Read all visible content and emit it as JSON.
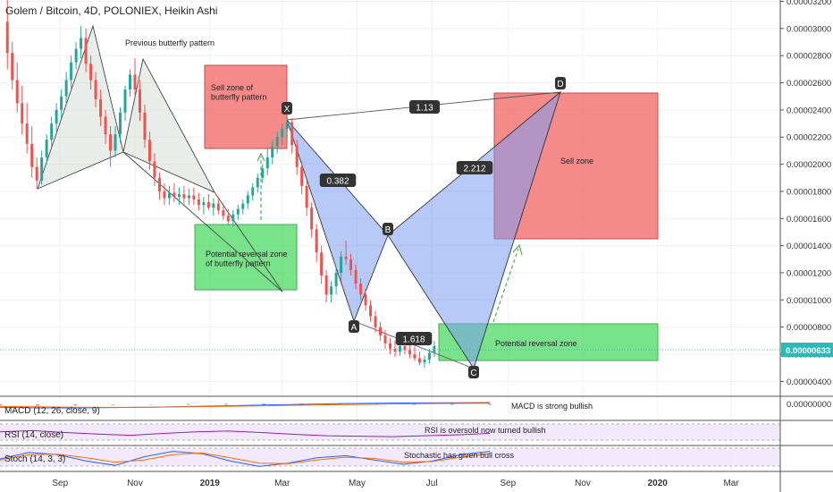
{
  "header": {
    "title": "Golem / Bitcoin, 4D, POLONIEX, Heikin Ashi"
  },
  "colors": {
    "bull": "#26a69a",
    "bear": "#ef5350",
    "sell_zone": "#f26d6d",
    "reversal_zone": "#4cd964",
    "xabcd_fill": "#7b9cf0",
    "butterfly_fill": "#cfd8cf",
    "price_line": "#2eb8b8",
    "macd_line": "#2962ff",
    "signal_line": "#ff6d00",
    "rsi_line": "#8e24aa",
    "stoch_k": "#2962ff",
    "stoch_d": "#ff6d00",
    "panel_fill": "#efe3f9"
  },
  "chart_data": {
    "type": "candlestick",
    "title": "Golem / Bitcoin, 4D, POLONIEX, Heikin Ashi",
    "xlabel": "",
    "ylabel": "",
    "x_ticks": [
      "Sep",
      "Nov",
      "2019",
      "Mar",
      "May",
      "Jul",
      "Sep",
      "Nov",
      "2020",
      "Mar"
    ],
    "y_ticks": [
      "0.00003200",
      "0.00003000",
      "0.00002800",
      "0.00002600",
      "0.00002400",
      "0.00002200",
      "0.00002000",
      "0.00001800",
      "0.00001600",
      "0.00001400",
      "0.00001200",
      "0.00001000",
      "0.00000800",
      "0.00000600",
      "0.00000400"
    ],
    "ylim": [
      3.1e-06,
      3.21e-05
    ],
    "last_price": "0.00000633",
    "grid": true,
    "candles": [
      {
        "x": "2018-07-20",
        "o": 3.05e-05,
        "h": 3.25e-05,
        "l": 2.7e-05,
        "c": 2.82e-05
      },
      {
        "x": "2018-07-24",
        "o": 2.82e-05,
        "h": 2.9e-05,
        "l": 2.55e-05,
        "c": 2.62e-05
      },
      {
        "x": "2018-07-28",
        "o": 2.62e-05,
        "h": 2.75e-05,
        "l": 2.38e-05,
        "c": 2.45e-05
      },
      {
        "x": "2018-08-01",
        "o": 2.45e-05,
        "h": 2.58e-05,
        "l": 2.22e-05,
        "c": 2.3e-05
      },
      {
        "x": "2018-08-05",
        "o": 2.3e-05,
        "h": 2.45e-05,
        "l": 2.08e-05,
        "c": 2.15e-05
      },
      {
        "x": "2018-08-09",
        "o": 2.15e-05,
        "h": 2.28e-05,
        "l": 1.9e-05,
        "c": 1.98e-05
      },
      {
        "x": "2018-08-13",
        "o": 1.98e-05,
        "h": 2.05e-05,
        "l": 1.82e-05,
        "c": 1.88e-05
      },
      {
        "x": "2018-08-17",
        "o": 1.88e-05,
        "h": 2.1e-05,
        "l": 1.85e-05,
        "c": 2.05e-05
      },
      {
        "x": "2018-08-21",
        "o": 2.05e-05,
        "h": 2.22e-05,
        "l": 2e-05,
        "c": 2.18e-05
      },
      {
        "x": "2018-08-25",
        "o": 2.18e-05,
        "h": 2.35e-05,
        "l": 2.12e-05,
        "c": 2.3e-05
      },
      {
        "x": "2018-08-29",
        "o": 2.3e-05,
        "h": 2.45e-05,
        "l": 2.24e-05,
        "c": 2.4e-05
      },
      {
        "x": "2018-09-02",
        "o": 2.4e-05,
        "h": 2.55e-05,
        "l": 2.34e-05,
        "c": 2.5e-05
      },
      {
        "x": "2018-09-06",
        "o": 2.5e-05,
        "h": 2.68e-05,
        "l": 2.44e-05,
        "c": 2.62e-05
      },
      {
        "x": "2018-09-10",
        "o": 2.62e-05,
        "h": 2.8e-05,
        "l": 2.56e-05,
        "c": 2.75e-05
      },
      {
        "x": "2018-09-14",
        "o": 2.75e-05,
        "h": 2.9e-05,
        "l": 2.7e-05,
        "c": 2.85e-05
      },
      {
        "x": "2018-09-18",
        "o": 2.85e-05,
        "h": 3.02e-05,
        "l": 2.78e-05,
        "c": 2.93e-05
      },
      {
        "x": "2018-09-22",
        "o": 2.93e-05,
        "h": 3e-05,
        "l": 2.68e-05,
        "c": 2.74e-05
      },
      {
        "x": "2018-09-26",
        "o": 2.74e-05,
        "h": 2.8e-05,
        "l": 2.55e-05,
        "c": 2.62e-05
      },
      {
        "x": "2018-09-30",
        "o": 2.62e-05,
        "h": 2.68e-05,
        "l": 2.42e-05,
        "c": 2.48e-05
      },
      {
        "x": "2018-10-04",
        "o": 2.48e-05,
        "h": 2.55e-05,
        "l": 2.28e-05,
        "c": 2.35e-05
      },
      {
        "x": "2018-10-08",
        "o": 2.35e-05,
        "h": 2.4e-05,
        "l": 2.15e-05,
        "c": 2.22e-05
      },
      {
        "x": "2018-10-12",
        "o": 2.22e-05,
        "h": 2.28e-05,
        "l": 1.98e-05,
        "c": 2.1e-05
      },
      {
        "x": "2018-10-16",
        "o": 2.1e-05,
        "h": 2.28e-05,
        "l": 2.05e-05,
        "c": 2.22e-05
      },
      {
        "x": "2018-10-20",
        "o": 2.22e-05,
        "h": 2.42e-05,
        "l": 2.16e-05,
        "c": 2.38e-05
      },
      {
        "x": "2018-10-24",
        "o": 2.38e-05,
        "h": 2.58e-05,
        "l": 2.32e-05,
        "c": 2.55e-05
      },
      {
        "x": "2018-10-28",
        "o": 2.55e-05,
        "h": 2.7e-05,
        "l": 2.5e-05,
        "c": 2.66e-05
      },
      {
        "x": "2018-11-01",
        "o": 2.66e-05,
        "h": 2.78e-05,
        "l": 2.5e-05,
        "c": 2.55e-05
      },
      {
        "x": "2018-11-05",
        "o": 2.55e-05,
        "h": 2.62e-05,
        "l": 2.32e-05,
        "c": 2.38e-05
      },
      {
        "x": "2018-11-09",
        "o": 2.38e-05,
        "h": 2.44e-05,
        "l": 2.12e-05,
        "c": 2.18e-05
      },
      {
        "x": "2018-11-13",
        "o": 2.18e-05,
        "h": 2.24e-05,
        "l": 1.96e-05,
        "c": 2.02e-05
      },
      {
        "x": "2018-11-17",
        "o": 2.02e-05,
        "h": 2.08e-05,
        "l": 1.84e-05,
        "c": 1.9e-05
      },
      {
        "x": "2018-11-21",
        "o": 1.9e-05,
        "h": 1.94e-05,
        "l": 1.74e-05,
        "c": 1.8e-05
      },
      {
        "x": "2018-11-25",
        "o": 1.8e-05,
        "h": 1.86e-05,
        "l": 1.7e-05,
        "c": 1.75e-05
      },
      {
        "x": "2018-11-29",
        "o": 1.75e-05,
        "h": 1.84e-05,
        "l": 1.7e-05,
        "c": 1.79e-05
      },
      {
        "x": "2018-12-03",
        "o": 1.79e-05,
        "h": 1.86e-05,
        "l": 1.72e-05,
        "c": 1.76e-05
      },
      {
        "x": "2018-12-07",
        "o": 1.76e-05,
        "h": 1.83e-05,
        "l": 1.7e-05,
        "c": 1.78e-05
      },
      {
        "x": "2018-12-11",
        "o": 1.78e-05,
        "h": 1.84e-05,
        "l": 1.71e-05,
        "c": 1.75e-05
      },
      {
        "x": "2018-12-15",
        "o": 1.75e-05,
        "h": 1.82e-05,
        "l": 1.7e-05,
        "c": 1.77e-05
      },
      {
        "x": "2018-12-19",
        "o": 1.77e-05,
        "h": 1.83e-05,
        "l": 1.7e-05,
        "c": 1.74e-05
      },
      {
        "x": "2018-12-23",
        "o": 1.74e-05,
        "h": 1.79e-05,
        "l": 1.66e-05,
        "c": 1.7e-05
      },
      {
        "x": "2018-12-27",
        "o": 1.7e-05,
        "h": 1.76e-05,
        "l": 1.63e-05,
        "c": 1.72e-05
      },
      {
        "x": "2018-12-31",
        "o": 1.72e-05,
        "h": 1.78e-05,
        "l": 1.66e-05,
        "c": 1.68e-05
      },
      {
        "x": "2019-01-04",
        "o": 1.68e-05,
        "h": 1.75e-05,
        "l": 1.62e-05,
        "c": 1.71e-05
      },
      {
        "x": "2019-01-08",
        "o": 1.71e-05,
        "h": 1.76e-05,
        "l": 1.63e-05,
        "c": 1.66e-05
      },
      {
        "x": "2019-01-12",
        "o": 1.66e-05,
        "h": 1.71e-05,
        "l": 1.59e-05,
        "c": 1.62e-05
      },
      {
        "x": "2019-01-16",
        "o": 1.62e-05,
        "h": 1.67e-05,
        "l": 1.55e-05,
        "c": 1.58e-05
      },
      {
        "x": "2019-01-20",
        "o": 1.58e-05,
        "h": 1.66e-05,
        "l": 1.54e-05,
        "c": 1.63e-05
      },
      {
        "x": "2019-01-24",
        "o": 1.63e-05,
        "h": 1.7e-05,
        "l": 1.59e-05,
        "c": 1.67e-05
      },
      {
        "x": "2019-01-28",
        "o": 1.67e-05,
        "h": 1.74e-05,
        "l": 1.63e-05,
        "c": 1.71e-05
      },
      {
        "x": "2019-02-01",
        "o": 1.71e-05,
        "h": 1.8e-05,
        "l": 1.67e-05,
        "c": 1.77e-05
      },
      {
        "x": "2019-02-05",
        "o": 1.77e-05,
        "h": 1.86e-05,
        "l": 1.73e-05,
        "c": 1.83e-05
      },
      {
        "x": "2019-02-09",
        "o": 1.83e-05,
        "h": 1.93e-05,
        "l": 1.79e-05,
        "c": 1.9e-05
      },
      {
        "x": "2019-02-13",
        "o": 1.9e-05,
        "h": 2e-05,
        "l": 1.86e-05,
        "c": 1.97e-05
      },
      {
        "x": "2019-02-17",
        "o": 1.97e-05,
        "h": 2.12e-05,
        "l": 1.92e-05,
        "c": 2.05e-05
      },
      {
        "x": "2019-02-21",
        "o": 2.05e-05,
        "h": 2.18e-05,
        "l": 2e-05,
        "c": 2.13e-05
      },
      {
        "x": "2019-02-25",
        "o": 2.13e-05,
        "h": 2.24e-05,
        "l": 2.08e-05,
        "c": 2.2e-05
      },
      {
        "x": "2019-03-01",
        "o": 2.2e-05,
        "h": 2.3e-05,
        "l": 2.14e-05,
        "c": 2.26e-05
      },
      {
        "x": "2019-03-05",
        "o": 2.26e-05,
        "h": 2.36e-05,
        "l": 2.18e-05,
        "c": 2.31e-05
      },
      {
        "x": "2019-03-09",
        "o": 2.31e-05,
        "h": 2.34e-05,
        "l": 2.08e-05,
        "c": 2.14e-05
      },
      {
        "x": "2019-03-13",
        "o": 2.14e-05,
        "h": 2.18e-05,
        "l": 1.92e-05,
        "c": 1.98e-05
      },
      {
        "x": "2019-03-17",
        "o": 1.98e-05,
        "h": 2.02e-05,
        "l": 1.78e-05,
        "c": 1.84e-05
      },
      {
        "x": "2019-03-21",
        "o": 1.84e-05,
        "h": 1.88e-05,
        "l": 1.62e-05,
        "c": 1.68e-05
      },
      {
        "x": "2019-03-25",
        "o": 1.68e-05,
        "h": 1.72e-05,
        "l": 1.46e-05,
        "c": 1.52e-05
      },
      {
        "x": "2019-03-29",
        "o": 1.52e-05,
        "h": 1.56e-05,
        "l": 1.28e-05,
        "c": 1.35e-05
      },
      {
        "x": "2019-04-02",
        "o": 1.35e-05,
        "h": 1.4e-05,
        "l": 1.12e-05,
        "c": 1.18e-05
      },
      {
        "x": "2019-04-06",
        "o": 1.18e-05,
        "h": 1.22e-05,
        "l": 9.8e-06,
        "c": 1.04e-05
      },
      {
        "x": "2019-04-10",
        "o": 1.04e-05,
        "h": 1.14e-05,
        "l": 9.8e-06,
        "c": 1.1e-05
      },
      {
        "x": "2019-04-14",
        "o": 1.1e-05,
        "h": 1.24e-05,
        "l": 1.04e-05,
        "c": 1.2e-05
      },
      {
        "x": "2019-04-18",
        "o": 1.2e-05,
        "h": 1.36e-05,
        "l": 1.14e-05,
        "c": 1.32e-05
      },
      {
        "x": "2019-04-22",
        "o": 1.32e-05,
        "h": 1.44e-05,
        "l": 1.26e-05,
        "c": 1.3e-05
      },
      {
        "x": "2019-04-26",
        "o": 1.3e-05,
        "h": 1.34e-05,
        "l": 1.18e-05,
        "c": 1.22e-05
      },
      {
        "x": "2019-04-30",
        "o": 1.22e-05,
        "h": 1.26e-05,
        "l": 1.08e-05,
        "c": 1.12e-05
      },
      {
        "x": "2019-05-04",
        "o": 1.12e-05,
        "h": 1.16e-05,
        "l": 1e-05,
        "c": 1.04e-05
      },
      {
        "x": "2019-05-08",
        "o": 1.04e-05,
        "h": 1.08e-05,
        "l": 9.2e-06,
        "c": 9.6e-06
      },
      {
        "x": "2019-05-12",
        "o": 9.6e-06,
        "h": 1e-05,
        "l": 8.4e-06,
        "c": 8.8e-06
      },
      {
        "x": "2019-05-16",
        "o": 8.8e-06,
        "h": 9.2e-06,
        "l": 7.6e-06,
        "c": 8e-06
      },
      {
        "x": "2019-05-20",
        "o": 8e-06,
        "h": 8.4e-06,
        "l": 7e-06,
        "c": 7.4e-06
      },
      {
        "x": "2019-05-24",
        "o": 7.4e-06,
        "h": 7.8e-06,
        "l": 6.4e-06,
        "c": 6.8e-06
      },
      {
        "x": "2019-05-28",
        "o": 6.8e-06,
        "h": 7.2e-06,
        "l": 6e-06,
        "c": 6.4e-06
      },
      {
        "x": "2019-06-01",
        "o": 6.4e-06,
        "h": 7e-06,
        "l": 5.8e-06,
        "c": 6.2e-06
      },
      {
        "x": "2019-06-05",
        "o": 6.2e-06,
        "h": 7e-06,
        "l": 5.9e-06,
        "c": 6.6e-06
      },
      {
        "x": "2019-06-09",
        "o": 6.6e-06,
        "h": 7.2e-06,
        "l": 6e-06,
        "c": 6.3e-06
      },
      {
        "x": "2019-06-13",
        "o": 6.3e-06,
        "h": 6.8e-06,
        "l": 5.7e-06,
        "c": 6e-06
      },
      {
        "x": "2019-06-17",
        "o": 6e-06,
        "h": 6.6e-06,
        "l": 5.5e-06,
        "c": 5.7e-06
      },
      {
        "x": "2019-06-21",
        "o": 5.7e-06,
        "h": 6.2e-06,
        "l": 5.2e-06,
        "c": 5.4e-06
      },
      {
        "x": "2019-06-25",
        "o": 5.4e-06,
        "h": 5.9e-06,
        "l": 5e-06,
        "c": 5.6e-06
      },
      {
        "x": "2019-06-29",
        "o": 5.6e-06,
        "h": 6.4e-06,
        "l": 5.3e-06,
        "c": 6.1e-06
      },
      {
        "x": "2019-07-03",
        "o": 6.1e-06,
        "h": 7e-06,
        "l": 5.8e-06,
        "c": 6.6e-06
      }
    ],
    "indicators": [
      {
        "name": "MACD (12, 26, close, 9)",
        "macd": [
          -0.4,
          -0.5,
          -0.5,
          -0.45,
          -0.4,
          -0.3,
          -0.2,
          -0.1,
          0.0,
          0.1,
          0.15,
          0.2,
          0.22,
          0.25
        ],
        "signal": [
          -0.3,
          -0.35,
          -0.4,
          -0.42,
          -0.4,
          -0.35,
          -0.28,
          -0.2,
          -0.12,
          -0.05,
          0.02,
          0.08,
          0.12,
          0.16
        ]
      },
      {
        "name": "RSI (14, close)",
        "values": [
          55,
          60,
          52,
          45,
          40,
          48,
          55,
          58,
          52,
          44,
          38,
          36,
          34,
          38,
          42,
          48
        ]
      },
      {
        "name": "Stoch (14, 3, 3)",
        "k": [
          50,
          80,
          70,
          40,
          20,
          60,
          85,
          75,
          40,
          15,
          30,
          55,
          65,
          45,
          25,
          40,
          70,
          85
        ],
        "d": [
          45,
          70,
          72,
          55,
          35,
          45,
          70,
          78,
          55,
          30,
          28,
          45,
          58,
          52,
          35,
          38,
          58,
          75
        ]
      }
    ],
    "pattern_labels": {
      "X": "X",
      "A": "A",
      "B": "B",
      "C": "C",
      "D": "D"
    },
    "ratios": [
      "0.382",
      "1.13",
      "2.212",
      "1.618"
    ]
  },
  "annotations": {
    "prev_butterfly": "Previous butterfly pattern",
    "sell_zone_butterfly": "Sell zone of butterfly pattern",
    "potential_reversal_butterfly": "Potential reversal zone of butterfly pattern",
    "sell_zone": "Sell zone",
    "potential_reversal": "Potential reversal zone",
    "macd_note": "MACD is strong bullish",
    "rsi_note": "RSI is oversold now turned bullish",
    "stoch_note": "Stochastic has given bull cross"
  },
  "panels": {
    "macd_label": "MACD (12, 26, close, 9)",
    "rsi_label": "RSI (14, close)",
    "stoch_label": "Stoch (14, 3, 3)",
    "macd_tick": "0.00000000"
  }
}
